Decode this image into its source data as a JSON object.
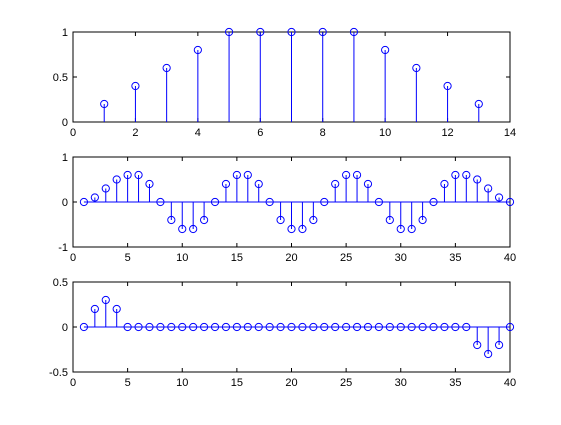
{
  "chart_data": [
    {
      "type": "stem",
      "title": "",
      "xlabel": "",
      "ylabel": "",
      "xlim": [
        0,
        14
      ],
      "ylim": [
        0,
        1
      ],
      "xticks": [
        0,
        2,
        4,
        6,
        8,
        10,
        12,
        14
      ],
      "yticks": [
        0,
        0.5,
        1
      ],
      "xtick_labels": [
        "0",
        "2",
        "4",
        "6",
        "8",
        "10",
        "12",
        "14"
      ],
      "ytick_labels": [
        "0",
        "0.5",
        "1"
      ],
      "grid": false,
      "color": "#0000ff",
      "x": [
        1,
        2,
        3,
        4,
        5,
        6,
        7,
        8,
        9,
        10,
        11,
        12,
        13
      ],
      "y": [
        0.2,
        0.4,
        0.6,
        0.8,
        1,
        1,
        1,
        1,
        1,
        0.8,
        0.6,
        0.4,
        0.2
      ]
    },
    {
      "type": "stem",
      "title": "",
      "xlabel": "",
      "ylabel": "",
      "xlim": [
        0,
        40
      ],
      "ylim": [
        -1,
        1
      ],
      "xticks": [
        0,
        5,
        10,
        15,
        20,
        25,
        30,
        35,
        40
      ],
      "yticks": [
        -1,
        0,
        1
      ],
      "xtick_labels": [
        "0",
        "5",
        "10",
        "15",
        "20",
        "25",
        "30",
        "35",
        "40"
      ],
      "ytick_labels": [
        "-1",
        "0",
        "1"
      ],
      "grid": false,
      "color": "#0000ff",
      "x": [
        1,
        2,
        3,
        4,
        5,
        6,
        7,
        8,
        9,
        10,
        11,
        12,
        13,
        14,
        15,
        16,
        17,
        18,
        19,
        20,
        21,
        22,
        23,
        24,
        25,
        26,
        27,
        28,
        29,
        30,
        31,
        32,
        33,
        34,
        35,
        36,
        37,
        38,
        39,
        40
      ],
      "y": [
        0,
        0.1,
        0.3,
        0.5,
        0.6,
        0.6,
        0.4,
        0,
        -0.4,
        -0.6,
        -0.6,
        -0.4,
        0,
        0.4,
        0.6,
        0.6,
        0.4,
        0,
        -0.4,
        -0.6,
        -0.6,
        -0.4,
        0,
        0.4,
        0.6,
        0.6,
        0.4,
        0,
        -0.4,
        -0.6,
        -0.6,
        -0.4,
        0,
        0.4,
        0.6,
        0.6,
        0.5,
        0.3,
        0.1,
        0
      ]
    },
    {
      "type": "stem",
      "title": "",
      "xlabel": "",
      "ylabel": "",
      "xlim": [
        0,
        40
      ],
      "ylim": [
        -0.5,
        0.5
      ],
      "xticks": [
        0,
        5,
        10,
        15,
        20,
        25,
        30,
        35,
        40
      ],
      "yticks": [
        -0.5,
        0,
        0.5
      ],
      "xtick_labels": [
        "0",
        "5",
        "10",
        "15",
        "20",
        "25",
        "30",
        "35",
        "40"
      ],
      "ytick_labels": [
        "-0.5",
        "0",
        "0.5"
      ],
      "grid": false,
      "color": "#0000ff",
      "x": [
        1,
        2,
        3,
        4,
        5,
        6,
        7,
        8,
        9,
        10,
        11,
        12,
        13,
        14,
        15,
        16,
        17,
        18,
        19,
        20,
        21,
        22,
        23,
        24,
        25,
        26,
        27,
        28,
        29,
        30,
        31,
        32,
        33,
        34,
        35,
        36,
        37,
        38,
        39,
        40
      ],
      "y": [
        0,
        0.2,
        0.3,
        0.2,
        0,
        0,
        0,
        0,
        0,
        0,
        0,
        0,
        0,
        0,
        0,
        0,
        0,
        0,
        0,
        0,
        0,
        0,
        0,
        0,
        0,
        0,
        0,
        0,
        0,
        0,
        0,
        0,
        0,
        0,
        0,
        0,
        -0.2,
        -0.3,
        -0.2,
        0
      ]
    }
  ]
}
